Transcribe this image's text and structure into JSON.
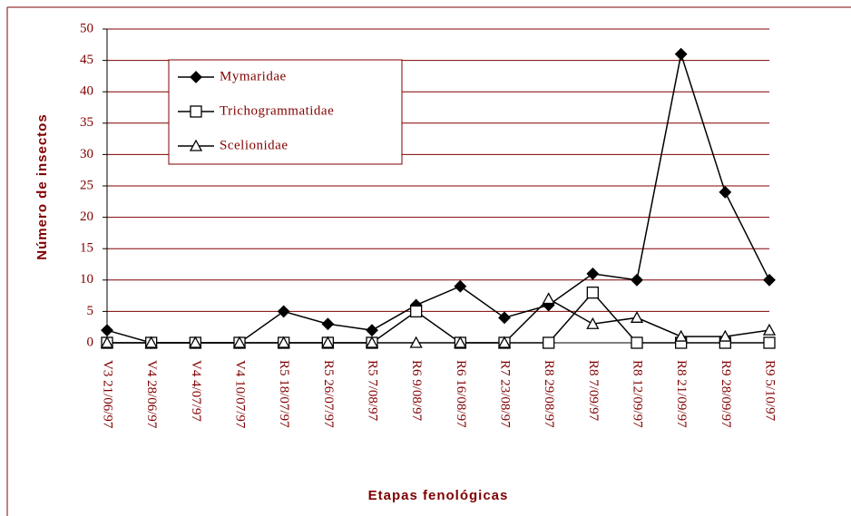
{
  "chart_data": {
    "type": "line",
    "xlabel": "Etapas fenológicas",
    "ylabel": "Número de insectos",
    "categories": [
      "V3 21/06/97",
      "V4 28/06/97",
      "V4 4/07/97",
      "V4 10/07/97",
      "R5 18/07/97",
      "R5 26/07/97",
      "R5 7/08/97",
      "R6 9/08/97",
      "R6 16/08/97",
      "R7 23/08/97",
      "R8 29/08/97",
      "R8 7/09/97",
      "R8 12/09/97",
      "R8 21/09/97",
      "R9 28/09/97",
      "R9 5/10/97"
    ],
    "series": [
      {
        "name": "Mymaridae",
        "color": "#000000",
        "marker": "diamond",
        "fill": "#000000",
        "values": [
          2,
          0,
          0,
          0,
          5,
          3,
          2,
          6,
          9,
          4,
          6,
          11,
          10,
          46,
          24,
          10
        ]
      },
      {
        "name": "Trichogrammatidae",
        "color": "#000000",
        "marker": "square",
        "fill": "#ffffff",
        "values": [
          0,
          0,
          0,
          0,
          0,
          0,
          0,
          5,
          0,
          0,
          0,
          8,
          0,
          0,
          0,
          0
        ]
      },
      {
        "name": "Scelionidae",
        "color": "#000000",
        "marker": "triangle",
        "fill": "#ffffff",
        "values": [
          0,
          0,
          0,
          0,
          0,
          0,
          0,
          0,
          0,
          0,
          7,
          3,
          4,
          1,
          1,
          2
        ]
      }
    ],
    "ylim": [
      0,
      50
    ],
    "yticks": [
      0,
      5,
      10,
      15,
      20,
      25,
      30,
      35,
      40,
      45,
      50
    ],
    "grid": true,
    "grid_color": "#800000",
    "legend": "upper left"
  }
}
